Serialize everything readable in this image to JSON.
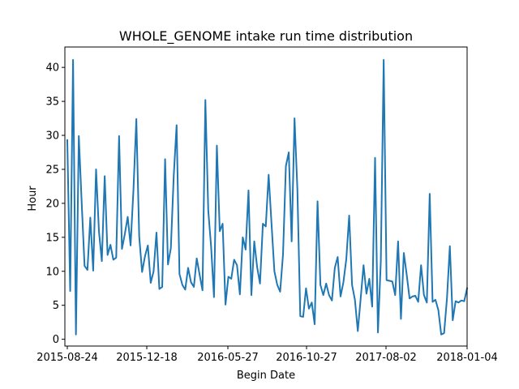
{
  "chart_data": {
    "type": "line",
    "title": "WHOLE_GENOME intake run time distribution",
    "xlabel": "Begin Date",
    "ylabel": "Hour",
    "x_tick_labels": [
      "2015-08-24",
      "2015-12-18",
      "2016-05-27",
      "2016-10-27",
      "2017-08-02",
      "2018-01-04"
    ],
    "y_ticks": [
      0,
      5,
      10,
      15,
      20,
      25,
      30,
      35,
      40
    ],
    "ylim": [
      -1,
      43
    ],
    "grid": false,
    "legend": "none",
    "series": [
      {
        "color": "#1f77b4",
        "values": [
          29.3,
          7.1,
          41.1,
          0.7,
          29.9,
          20.1,
          10.8,
          10.2,
          17.9,
          10.1,
          25.0,
          15.9,
          11.5,
          24.0,
          12.4,
          13.9,
          11.7,
          12.0,
          29.9,
          13.3,
          15.5,
          18.0,
          13.8,
          22.0,
          32.4,
          15.1,
          9.9,
          12.2,
          13.8,
          8.3,
          10.0,
          15.7,
          7.4,
          7.7,
          26.5,
          11.0,
          13.4,
          24.0,
          31.5,
          9.6,
          8.0,
          7.3,
          10.5,
          8.4,
          7.7,
          11.9,
          9.5,
          7.2,
          35.2,
          19.0,
          13.6,
          6.2,
          28.5,
          15.9,
          17.0,
          5.1,
          9.2,
          8.9,
          11.7,
          10.9,
          6.6,
          15.0,
          13.2,
          21.9,
          6.5,
          14.4,
          10.6,
          8.2,
          17.0,
          16.6,
          24.2,
          17.0,
          10.0,
          8.0,
          7.0,
          12.5,
          25.5,
          27.5,
          14.4,
          32.5,
          22.0,
          3.4,
          3.3,
          7.5,
          4.5,
          5.4,
          2.2,
          20.3,
          8.0,
          6.5,
          8.2,
          6.5,
          5.7,
          10.5,
          12.1,
          6.3,
          8.4,
          11.8,
          18.2,
          8.0,
          5.8,
          1.2,
          6.0,
          10.9,
          6.7,
          8.9,
          4.8,
          26.7,
          1.0,
          11.5,
          41.1,
          8.7,
          8.6,
          8.5,
          6.5,
          14.4,
          3.0,
          12.7,
          9.5,
          6.0,
          6.3,
          6.4,
          5.5,
          10.9,
          6.5,
          5.4,
          21.4,
          5.5,
          5.8,
          4.3,
          0.7,
          0.9,
          6.0,
          13.7,
          2.8,
          5.6,
          5.4,
          5.7,
          5.6,
          7.5
        ]
      }
    ]
  }
}
